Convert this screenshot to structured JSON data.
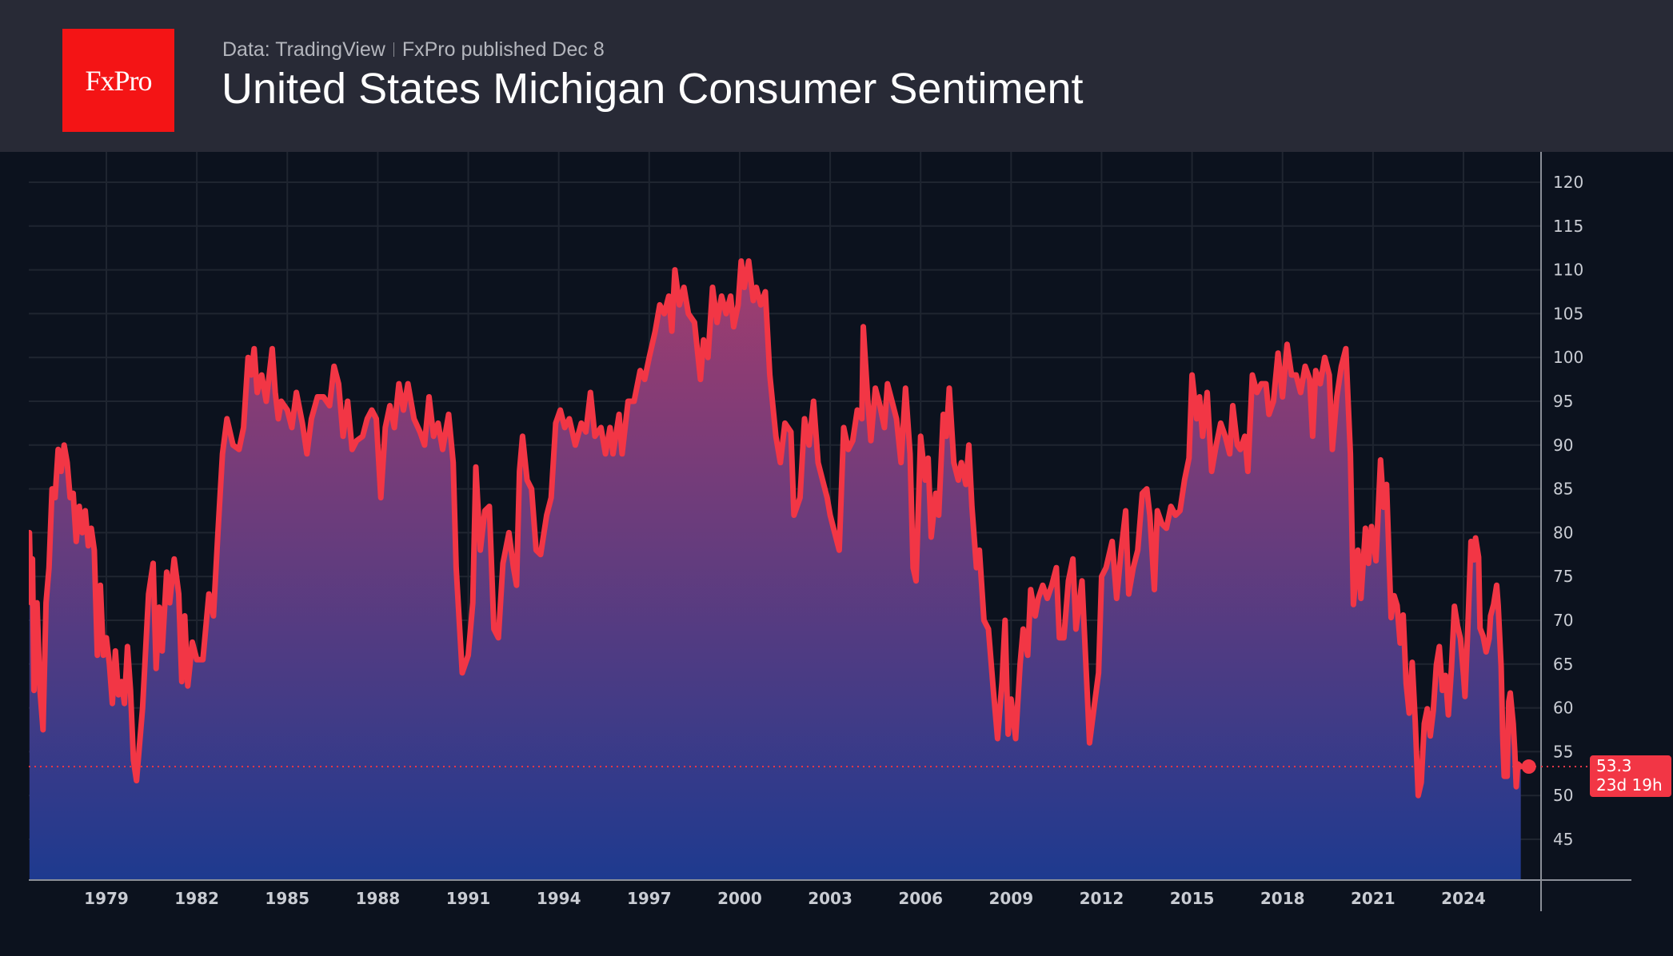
{
  "header": {
    "logo": "FxPro",
    "source": "Data: TradingView",
    "published": "FxPro published Dec 8",
    "title": "United States Michigan Consumer Sentiment"
  },
  "colors": {
    "line": "#f23645",
    "fill_top": "#a33d6e",
    "fill_bottom": "#1e3a8f",
    "background": "#0c121e",
    "header": "#282a36",
    "logo": "#f41415"
  },
  "chart_data": {
    "type": "area",
    "title": "United States Michigan Consumer Sentiment",
    "xlabel": "",
    "ylabel": "",
    "xlim": [
      1976.45,
      2026.6
    ],
    "ylim": [
      41,
      122
    ],
    "grid": true,
    "y_axis_side": "right",
    "x_ticks": [
      "1979",
      "1982",
      "1985",
      "1988",
      "1991",
      "1994",
      "1997",
      "2000",
      "2003",
      "2006",
      "2009",
      "2012",
      "2015",
      "2018",
      "2021",
      "2024"
    ],
    "y_ticks": [
      "120",
      "115",
      "110",
      "105",
      "100",
      "95",
      "90",
      "85",
      "80",
      "75",
      "70",
      "65",
      "60",
      "55",
      "50",
      "45"
    ],
    "last_value": "53.3",
    "countdown": "23d 19h",
    "points": [
      [
        1976.45,
        80
      ],
      [
        1976.5,
        72
      ],
      [
        1976.55,
        77
      ],
      [
        1976.6,
        62
      ],
      [
        1976.7,
        72
      ],
      [
        1976.8,
        62
      ],
      [
        1976.9,
        57.5
      ],
      [
        1977.0,
        72
      ],
      [
        1977.1,
        76
      ],
      [
        1977.2,
        85
      ],
      [
        1977.3,
        84
      ],
      [
        1977.4,
        89.5
      ],
      [
        1977.5,
        87
      ],
      [
        1977.6,
        90
      ],
      [
        1977.7,
        88
      ],
      [
        1977.8,
        84
      ],
      [
        1977.9,
        84.5
      ],
      [
        1978.0,
        79
      ],
      [
        1978.1,
        83
      ],
      [
        1978.2,
        80
      ],
      [
        1978.3,
        82.5
      ],
      [
        1978.4,
        78.5
      ],
      [
        1978.5,
        80.5
      ],
      [
        1978.6,
        78
      ],
      [
        1978.7,
        66
      ],
      [
        1978.8,
        74
      ],
      [
        1978.9,
        66
      ],
      [
        1979.0,
        68
      ],
      [
        1979.1,
        65
      ],
      [
        1979.2,
        60.5
      ],
      [
        1979.3,
        66.5
      ],
      [
        1979.4,
        61.5
      ],
      [
        1979.5,
        63
      ],
      [
        1979.6,
        60.5
      ],
      [
        1979.7,
        67
      ],
      [
        1979.8,
        62
      ],
      [
        1979.9,
        54
      ],
      [
        1980.0,
        51.7
      ],
      [
        1980.2,
        60
      ],
      [
        1980.4,
        73
      ],
      [
        1980.55,
        76.5
      ],
      [
        1980.65,
        64.5
      ],
      [
        1980.75,
        71.5
      ],
      [
        1980.85,
        66.5
      ],
      [
        1981.0,
        75.5
      ],
      [
        1981.1,
        72
      ],
      [
        1981.25,
        77
      ],
      [
        1981.4,
        73
      ],
      [
        1981.5,
        63
      ],
      [
        1981.6,
        70.5
      ],
      [
        1981.7,
        62.5
      ],
      [
        1981.85,
        67.5
      ],
      [
        1982.0,
        65.5
      ],
      [
        1982.2,
        65.5
      ],
      [
        1982.4,
        73
      ],
      [
        1982.55,
        70.5
      ],
      [
        1982.7,
        80
      ],
      [
        1982.85,
        89
      ],
      [
        1983.0,
        93
      ],
      [
        1983.2,
        90
      ],
      [
        1983.4,
        89.5
      ],
      [
        1983.55,
        92
      ],
      [
        1983.7,
        100
      ],
      [
        1983.8,
        98
      ],
      [
        1983.9,
        101
      ],
      [
        1984.0,
        96
      ],
      [
        1984.15,
        98
      ],
      [
        1984.3,
        95
      ],
      [
        1984.5,
        101
      ],
      [
        1984.6,
        96
      ],
      [
        1984.7,
        93
      ],
      [
        1984.8,
        95
      ],
      [
        1985.0,
        94
      ],
      [
        1985.15,
        92
      ],
      [
        1985.3,
        96
      ],
      [
        1985.5,
        92.5
      ],
      [
        1985.65,
        89
      ],
      [
        1985.8,
        93
      ],
      [
        1986.0,
        95.5
      ],
      [
        1986.2,
        95.5
      ],
      [
        1986.4,
        94.5
      ],
      [
        1986.55,
        99
      ],
      [
        1986.7,
        97
      ],
      [
        1986.85,
        91
      ],
      [
        1987.0,
        95
      ],
      [
        1987.15,
        89.5
      ],
      [
        1987.3,
        90.5
      ],
      [
        1987.5,
        91
      ],
      [
        1987.65,
        93
      ],
      [
        1987.8,
        94
      ],
      [
        1987.95,
        93
      ],
      [
        1988.1,
        84
      ],
      [
        1988.25,
        92
      ],
      [
        1988.4,
        94.5
      ],
      [
        1988.55,
        92
      ],
      [
        1988.7,
        97
      ],
      [
        1988.85,
        94
      ],
      [
        1989.0,
        97
      ],
      [
        1989.2,
        93
      ],
      [
        1989.4,
        91.5
      ],
      [
        1989.55,
        90
      ],
      [
        1989.7,
        95.5
      ],
      [
        1989.85,
        91
      ],
      [
        1990.0,
        92.5
      ],
      [
        1990.15,
        89.5
      ],
      [
        1990.35,
        93.5
      ],
      [
        1990.5,
        88
      ],
      [
        1990.6,
        76
      ],
      [
        1990.8,
        64
      ],
      [
        1991.0,
        66
      ],
      [
        1991.15,
        72
      ],
      [
        1991.25,
        87.5
      ],
      [
        1991.4,
        78
      ],
      [
        1991.55,
        82.5
      ],
      [
        1991.7,
        83
      ],
      [
        1991.85,
        69
      ],
      [
        1992.0,
        68
      ],
      [
        1992.15,
        76.5
      ],
      [
        1992.35,
        80
      ],
      [
        1992.5,
        76
      ],
      [
        1992.6,
        74
      ],
      [
        1992.7,
        87
      ],
      [
        1992.8,
        91
      ],
      [
        1992.95,
        86
      ],
      [
        1993.1,
        85
      ],
      [
        1993.25,
        78
      ],
      [
        1993.4,
        77.5
      ],
      [
        1993.6,
        82
      ],
      [
        1993.75,
        84
      ],
      [
        1993.9,
        92.5
      ],
      [
        1994.05,
        94
      ],
      [
        1994.2,
        92
      ],
      [
        1994.35,
        93
      ],
      [
        1994.55,
        90
      ],
      [
        1994.75,
        92.5
      ],
      [
        1994.9,
        91.5
      ],
      [
        1995.05,
        96
      ],
      [
        1995.2,
        91
      ],
      [
        1995.4,
        92
      ],
      [
        1995.55,
        89
      ],
      [
        1995.7,
        92
      ],
      [
        1995.8,
        89
      ],
      [
        1996.0,
        93.5
      ],
      [
        1996.1,
        89
      ],
      [
        1996.3,
        95
      ],
      [
        1996.5,
        95
      ],
      [
        1996.7,
        98.5
      ],
      [
        1996.85,
        97.5
      ],
      [
        1997.0,
        100
      ],
      [
        1997.2,
        103
      ],
      [
        1997.35,
        106
      ],
      [
        1997.5,
        105
      ],
      [
        1997.65,
        107
      ],
      [
        1997.75,
        103
      ],
      [
        1997.85,
        110
      ],
      [
        1998.0,
        106
      ],
      [
        1998.15,
        108
      ],
      [
        1998.3,
        105
      ],
      [
        1998.5,
        104
      ],
      [
        1998.7,
        97.5
      ],
      [
        1998.8,
        102
      ],
      [
        1998.95,
        100
      ],
      [
        1999.1,
        108
      ],
      [
        1999.25,
        104
      ],
      [
        1999.4,
        107
      ],
      [
        1999.55,
        105
      ],
      [
        1999.7,
        107
      ],
      [
        1999.8,
        103.5
      ],
      [
        1999.95,
        106
      ],
      [
        2000.05,
        111
      ],
      [
        2000.15,
        108
      ],
      [
        2000.3,
        111
      ],
      [
        2000.45,
        106.5
      ],
      [
        2000.55,
        108
      ],
      [
        2000.7,
        106
      ],
      [
        2000.85,
        107.5
      ],
      [
        2001.0,
        98
      ],
      [
        2001.2,
        91
      ],
      [
        2001.35,
        88
      ],
      [
        2001.5,
        92.5
      ],
      [
        2001.7,
        91.5
      ],
      [
        2001.8,
        82
      ],
      [
        2002.0,
        84
      ],
      [
        2002.15,
        93
      ],
      [
        2002.3,
        90
      ],
      [
        2002.45,
        95
      ],
      [
        2002.6,
        88
      ],
      [
        2002.75,
        86
      ],
      [
        2002.9,
        84
      ],
      [
        2003.0,
        82
      ],
      [
        2003.15,
        80
      ],
      [
        2003.3,
        78
      ],
      [
        2003.45,
        92
      ],
      [
        2003.6,
        89.5
      ],
      [
        2003.75,
        90.5
      ],
      [
        2003.9,
        94
      ],
      [
        2004.05,
        93
      ],
      [
        2004.1,
        103.5
      ],
      [
        2004.25,
        95
      ],
      [
        2004.35,
        90.5
      ],
      [
        2004.5,
        96.5
      ],
      [
        2004.65,
        94.5
      ],
      [
        2004.8,
        92
      ],
      [
        2004.9,
        97
      ],
      [
        2005.05,
        95
      ],
      [
        2005.2,
        93
      ],
      [
        2005.35,
        88
      ],
      [
        2005.5,
        96.5
      ],
      [
        2005.65,
        89
      ],
      [
        2005.75,
        76
      ],
      [
        2005.85,
        74.5
      ],
      [
        2006.0,
        91
      ],
      [
        2006.15,
        86
      ],
      [
        2006.25,
        88.5
      ],
      [
        2006.35,
        79.5
      ],
      [
        2006.5,
        84.5
      ],
      [
        2006.6,
        82
      ],
      [
        2006.75,
        93.5
      ],
      [
        2006.85,
        91
      ],
      [
        2006.95,
        96.5
      ],
      [
        2007.1,
        88
      ],
      [
        2007.25,
        86
      ],
      [
        2007.35,
        88
      ],
      [
        2007.5,
        85.5
      ],
      [
        2007.6,
        90
      ],
      [
        2007.7,
        83
      ],
      [
        2007.85,
        76
      ],
      [
        2007.95,
        78
      ],
      [
        2008.1,
        70
      ],
      [
        2008.25,
        69
      ],
      [
        2008.4,
        62.5
      ],
      [
        2008.55,
        56.5
      ],
      [
        2008.7,
        63
      ],
      [
        2008.8,
        70
      ],
      [
        2008.9,
        57
      ],
      [
        2009.0,
        61
      ],
      [
        2009.15,
        56.5
      ],
      [
        2009.3,
        65
      ],
      [
        2009.4,
        69
      ],
      [
        2009.55,
        66
      ],
      [
        2009.65,
        73.5
      ],
      [
        2009.8,
        70.5
      ],
      [
        2009.9,
        72.5
      ],
      [
        2010.05,
        74
      ],
      [
        2010.2,
        72.5
      ],
      [
        2010.35,
        74
      ],
      [
        2010.5,
        76
      ],
      [
        2010.6,
        68
      ],
      [
        2010.75,
        68
      ],
      [
        2010.9,
        74.5
      ],
      [
        2011.05,
        77
      ],
      [
        2011.15,
        69
      ],
      [
        2011.35,
        74.5
      ],
      [
        2011.5,
        63.5
      ],
      [
        2011.6,
        56
      ],
      [
        2011.75,
        60
      ],
      [
        2011.9,
        64
      ],
      [
        2012.0,
        75
      ],
      [
        2012.15,
        76
      ],
      [
        2012.35,
        79
      ],
      [
        2012.5,
        72.5
      ],
      [
        2012.65,
        78
      ],
      [
        2012.8,
        82.5
      ],
      [
        2012.9,
        73
      ],
      [
        2013.05,
        76
      ],
      [
        2013.2,
        78
      ],
      [
        2013.35,
        84.5
      ],
      [
        2013.5,
        85
      ],
      [
        2013.6,
        82
      ],
      [
        2013.75,
        73.5
      ],
      [
        2013.85,
        82.5
      ],
      [
        2014.0,
        81
      ],
      [
        2014.15,
        80.5
      ],
      [
        2014.3,
        83
      ],
      [
        2014.45,
        82
      ],
      [
        2014.6,
        82.5
      ],
      [
        2014.75,
        86
      ],
      [
        2014.9,
        88.5
      ],
      [
        2015.0,
        98
      ],
      [
        2015.15,
        93
      ],
      [
        2015.25,
        95.5
      ],
      [
        2015.35,
        91
      ],
      [
        2015.5,
        96
      ],
      [
        2015.65,
        87
      ],
      [
        2015.8,
        90
      ],
      [
        2015.95,
        92.5
      ],
      [
        2016.1,
        91
      ],
      [
        2016.25,
        89
      ],
      [
        2016.35,
        94.5
      ],
      [
        2016.5,
        90
      ],
      [
        2016.6,
        89.5
      ],
      [
        2016.75,
        91
      ],
      [
        2016.85,
        87
      ],
      [
        2017.0,
        98
      ],
      [
        2017.15,
        96
      ],
      [
        2017.3,
        97
      ],
      [
        2017.45,
        97
      ],
      [
        2017.55,
        93.5
      ],
      [
        2017.7,
        95
      ],
      [
        2017.85,
        100.5
      ],
      [
        2018.0,
        95.5
      ],
      [
        2018.15,
        101.5
      ],
      [
        2018.3,
        98
      ],
      [
        2018.45,
        98
      ],
      [
        2018.6,
        96
      ],
      [
        2018.75,
        99
      ],
      [
        2018.9,
        97.5
      ],
      [
        2019.0,
        91
      ],
      [
        2019.1,
        98.5
      ],
      [
        2019.25,
        97
      ],
      [
        2019.4,
        100
      ],
      [
        2019.55,
        98
      ],
      [
        2019.65,
        89.5
      ],
      [
        2019.8,
        95.5
      ],
      [
        2019.95,
        99
      ],
      [
        2020.1,
        101
      ],
      [
        2020.25,
        89
      ],
      [
        2020.35,
        71.8
      ],
      [
        2020.5,
        78
      ],
      [
        2020.6,
        72.5
      ],
      [
        2020.75,
        80.5
      ],
      [
        2020.85,
        76.5
      ],
      [
        2020.95,
        80.7
      ],
      [
        2021.1,
        76.8
      ],
      [
        2021.25,
        88.3
      ],
      [
        2021.35,
        82.9
      ],
      [
        2021.45,
        85.5
      ],
      [
        2021.6,
        70.3
      ],
      [
        2021.7,
        72.8
      ],
      [
        2021.8,
        71.7
      ],
      [
        2021.9,
        67.4
      ],
      [
        2022.0,
        70.6
      ],
      [
        2022.1,
        62.8
      ],
      [
        2022.2,
        59.4
      ],
      [
        2022.3,
        65.2
      ],
      [
        2022.4,
        58.4
      ],
      [
        2022.5,
        50
      ],
      [
        2022.6,
        51.5
      ],
      [
        2022.7,
        58.2
      ],
      [
        2022.8,
        59.9
      ],
      [
        2022.9,
        56.8
      ],
      [
        2023.0,
        59.7
      ],
      [
        2023.1,
        64.9
      ],
      [
        2023.2,
        67
      ],
      [
        2023.3,
        62
      ],
      [
        2023.4,
        63.7
      ],
      [
        2023.5,
        59.2
      ],
      [
        2023.6,
        64.4
      ],
      [
        2023.7,
        71.6
      ],
      [
        2023.8,
        69.4
      ],
      [
        2023.9,
        67.9
      ],
      [
        2024.0,
        63.8
      ],
      [
        2024.05,
        61.3
      ],
      [
        2024.15,
        69.7
      ],
      [
        2024.25,
        79
      ],
      [
        2024.35,
        76.9
      ],
      [
        2024.4,
        79.4
      ],
      [
        2024.5,
        77.2
      ],
      [
        2024.55,
        69.1
      ],
      [
        2024.65,
        68.2
      ],
      [
        2024.75,
        66.4
      ],
      [
        2024.85,
        67.9
      ],
      [
        2024.9,
        70.5
      ],
      [
        2025.0,
        71.8
      ],
      [
        2025.1,
        74
      ],
      [
        2025.15,
        71.7
      ],
      [
        2025.25,
        64.7
      ],
      [
        2025.3,
        57
      ],
      [
        2025.35,
        52.2
      ],
      [
        2025.45,
        52.2
      ],
      [
        2025.5,
        60.7
      ],
      [
        2025.55,
        61.7
      ],
      [
        2025.65,
        58.2
      ],
      [
        2025.7,
        55.1
      ],
      [
        2025.75,
        51
      ],
      [
        2025.8,
        53.6
      ],
      [
        2025.9,
        53.3
      ]
    ]
  }
}
